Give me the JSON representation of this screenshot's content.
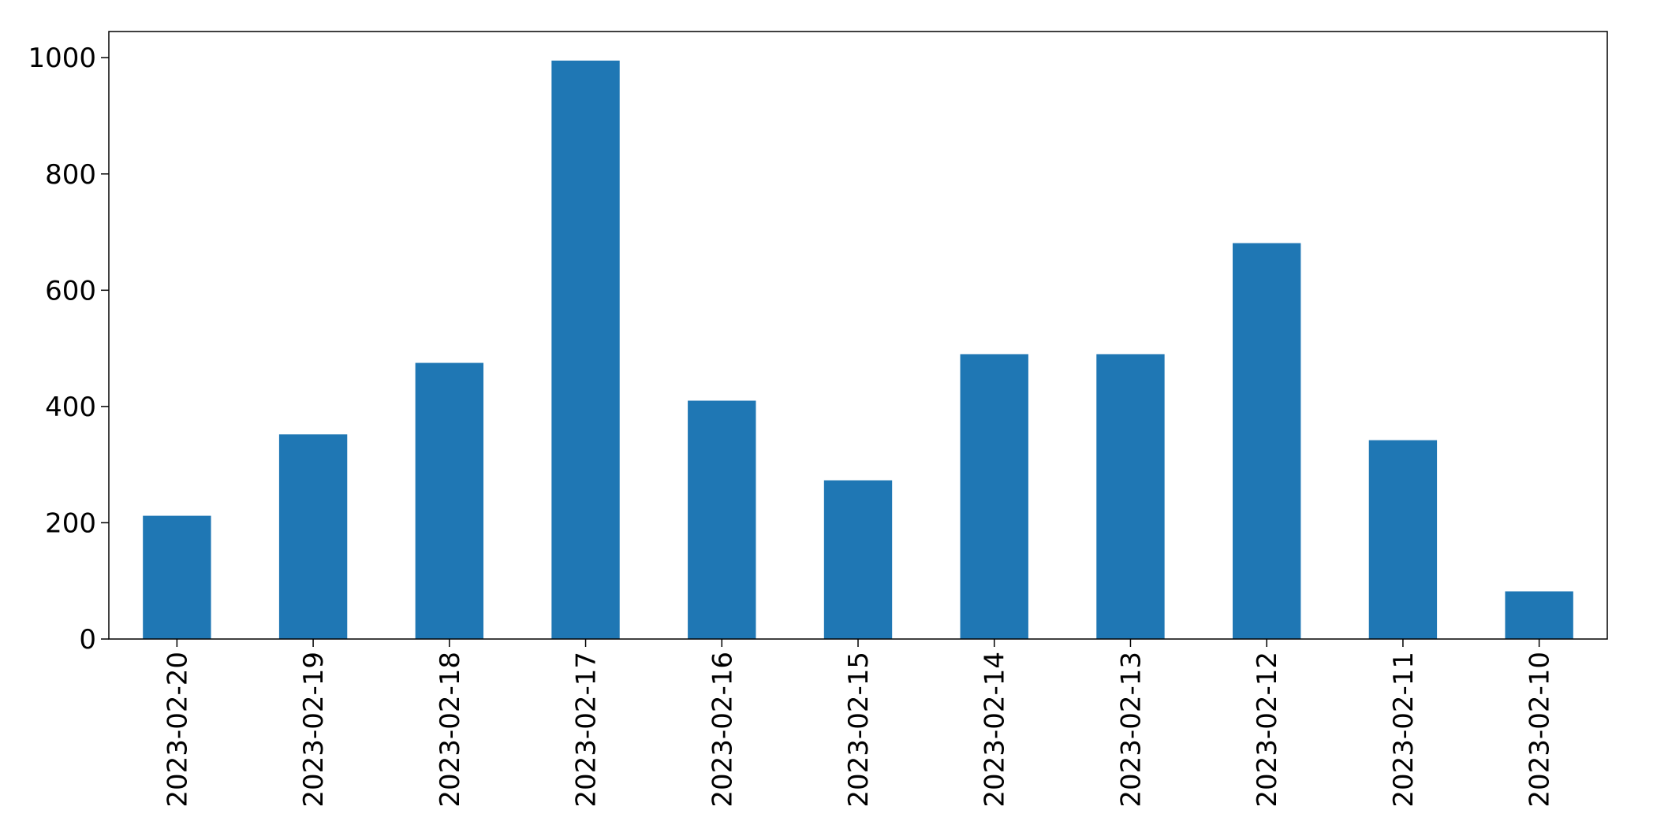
{
  "chart_data": {
    "type": "bar",
    "title": "",
    "xlabel": "",
    "ylabel": "",
    "categories": [
      "2023-02-20",
      "2023-02-19",
      "2023-02-18",
      "2023-02-17",
      "2023-02-16",
      "2023-02-15",
      "2023-02-14",
      "2023-02-13",
      "2023-02-12",
      "2023-02-11",
      "2023-02-10"
    ],
    "values": [
      212,
      352,
      475,
      995,
      410,
      273,
      490,
      490,
      681,
      342,
      82
    ],
    "ylim": [
      0,
      1045
    ],
    "yticks": [
      0,
      200,
      400,
      600,
      800,
      1000
    ],
    "grid": false,
    "legend": "none",
    "bar_color": "#1f77b4"
  }
}
